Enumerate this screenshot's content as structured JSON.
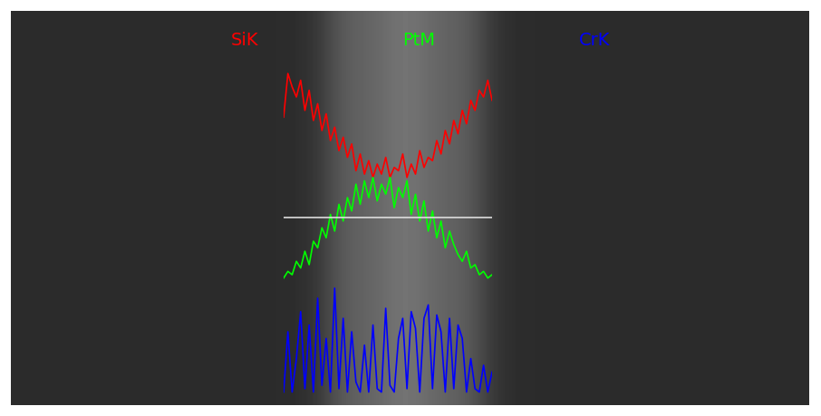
{
  "chart_data": {
    "type": "line",
    "x": [
      0,
      1,
      2,
      3,
      4,
      5,
      6,
      7,
      8,
      9,
      10,
      11,
      12,
      13,
      14,
      15,
      16,
      17,
      18,
      19,
      20,
      21,
      22,
      23,
      24,
      25,
      26,
      27,
      28,
      29,
      30,
      31,
      32,
      33,
      34,
      35,
      36,
      37,
      38,
      39,
      40,
      41,
      42,
      43,
      44,
      45,
      46,
      47,
      48,
      49
    ],
    "series": [
      {
        "name": "SiK",
        "color": "#ff0000",
        "values": [
          84,
          97,
          93,
          90,
          95,
          86,
          92,
          83,
          88,
          80,
          85,
          77,
          81,
          74,
          78,
          72,
          76,
          68,
          73,
          67,
          71,
          66,
          70,
          67,
          72,
          66,
          69,
          68,
          73,
          66,
          70,
          67,
          74,
          69,
          72,
          71,
          77,
          73,
          80,
          76,
          83,
          79,
          86,
          82,
          89,
          86,
          92,
          90,
          95,
          89
        ]
      },
      {
        "name": "PtM",
        "color": "#00ff00",
        "values": [
          36,
          38,
          37,
          41,
          39,
          44,
          40,
          47,
          45,
          51,
          48,
          55,
          50,
          58,
          53,
          60,
          56,
          64,
          58,
          65,
          60,
          66,
          59,
          64,
          61,
          66,
          57,
          63,
          60,
          65,
          55,
          61,
          53,
          59,
          50,
          56,
          48,
          53,
          45,
          50,
          46,
          43,
          41,
          44,
          39,
          40,
          37,
          38,
          36,
          37
        ]
      },
      {
        "name": "CrK",
        "color": "#0000ff",
        "values": [
          2,
          20,
          2,
          12,
          26,
          3,
          22,
          2,
          30,
          4,
          18,
          2,
          33,
          3,
          24,
          2,
          20,
          5,
          2,
          16,
          2,
          22,
          3,
          2,
          27,
          4,
          2,
          18,
          24,
          3,
          26,
          21,
          2,
          24,
          28,
          3,
          25,
          20,
          2,
          24,
          3,
          22,
          18,
          2,
          12,
          3,
          2,
          10,
          2,
          8
        ]
      }
    ],
    "xlim": [
      0,
      49
    ],
    "ylim": [
      0,
      100
    ],
    "xticks": [],
    "yticks": [],
    "tick_labels": false,
    "grid": false
  }
}
